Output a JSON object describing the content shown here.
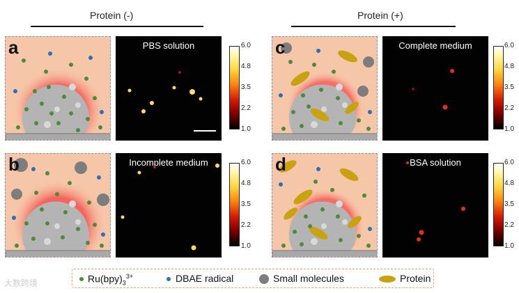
{
  "headers": {
    "left": "Protein (-)",
    "right": "Protein (+)"
  },
  "panels": [
    {
      "letter": "a",
      "label": "PBS solution"
    },
    {
      "letter": "b",
      "label": "Incomplete medium"
    },
    {
      "letter": "c",
      "label": "Complete medium"
    },
    {
      "letter": "d",
      "label": "BSA solution"
    }
  ],
  "colorbar": {
    "ticks": [
      "6.0",
      "4.8",
      "3.5",
      "2.2",
      "1.0"
    ]
  },
  "legend": {
    "ru": "Ru(bpy)",
    "ru_sub": "3",
    "ru_sup": "3+",
    "dbae": "DBAE radical",
    "small": "Small molecules",
    "protein": "Protein"
  },
  "colors": {
    "ru": "#4f8a3a",
    "dbae": "#2f6fb5",
    "small": "#7d7d7d",
    "protein": "#c9a212",
    "cell": "#b4b4b4",
    "glow": "#f4605a",
    "bg": "#f6c6a8"
  },
  "watermark": "大数跨境"
}
